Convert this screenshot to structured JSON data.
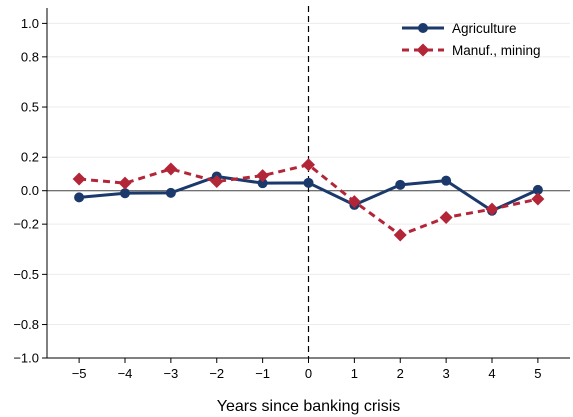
{
  "chart_data": {
    "type": "line",
    "xlabel": "Years since banking crisis",
    "ylabel": "",
    "x": [
      -5,
      -4,
      -3,
      -2,
      -1,
      0,
      1,
      2,
      3,
      4,
      5
    ],
    "x_tick_labels": [
      "−5",
      "−4",
      "−3",
      "−2",
      "−1",
      "0",
      "1",
      "2",
      "3",
      "4",
      "5"
    ],
    "y_ticks": [
      1.0,
      0.8,
      0.5,
      0.2,
      0.0,
      -0.2,
      -0.5,
      -0.8,
      -1.0
    ],
    "y_tick_labels": [
      "1.0",
      "0.8",
      "0.5",
      "0.2",
      "0.0",
      "−0.2",
      "−0.5",
      "−0.8",
      "−1.0"
    ],
    "xlim": [
      -5.7,
      5.7
    ],
    "ylim": [
      -1.0,
      1.08
    ],
    "grid": true,
    "zero_line": true,
    "event_line_x": 0,
    "legend_position": "top-right",
    "series": [
      {
        "name": "Agriculture",
        "color": "#1b3a6b",
        "marker": "circle",
        "line_style": "solid",
        "values": [
          -0.04,
          -0.015,
          -0.013,
          0.085,
          0.045,
          0.047,
          -0.085,
          0.035,
          0.06,
          -0.12,
          0.005
        ]
      },
      {
        "name": "Manuf., mining",
        "color": "#b32638",
        "marker": "diamond",
        "line_style": "dashed",
        "values": [
          0.07,
          0.045,
          0.13,
          0.055,
          0.09,
          0.155,
          -0.065,
          -0.265,
          -0.16,
          -0.11,
          -0.05
        ]
      }
    ]
  }
}
